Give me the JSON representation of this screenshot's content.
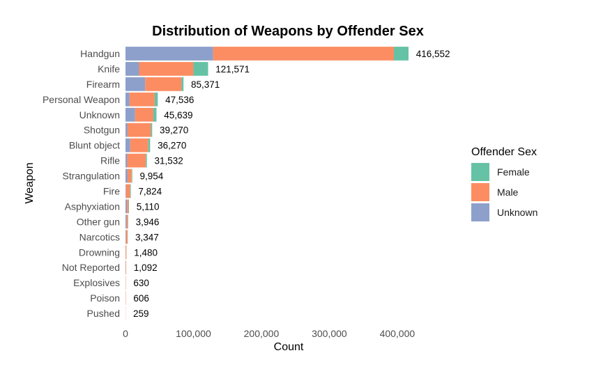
{
  "chart_data": {
    "type": "bar",
    "orientation": "horizontal",
    "stacked": true,
    "title": "Distribution of Weapons by Offender Sex",
    "xlabel": "Count",
    "ylabel": "Weapon",
    "xlim": [
      0,
      416552
    ],
    "xticks": [
      0,
      100000,
      200000,
      300000,
      400000
    ],
    "xtick_labels": [
      "0",
      "100,000",
      "200,000",
      "300,000",
      "400,000"
    ],
    "grid": false,
    "legend": {
      "title": "Offender Sex",
      "position": "right"
    },
    "categories": [
      "Handgun",
      "Knife",
      "Firearm",
      "Personal Weapon",
      "Unknown",
      "Shotgun",
      "Blunt object",
      "Rifle",
      "Strangulation",
      "Fire",
      "Asphyxiation",
      "Other gun",
      "Narcotics",
      "Drowning",
      "Not Reported",
      "Explosives",
      "Poison",
      "Pushed"
    ],
    "series": [
      {
        "name": "Unknown",
        "color": "#8DA0CB",
        "values": [
          129000,
          20000,
          29000,
          6000,
          14000,
          3000,
          7000,
          2500,
          3000,
          800,
          2200,
          1700,
          600,
          100,
          300,
          200,
          150,
          50
        ]
      },
      {
        "name": "Male",
        "color": "#FC8D62",
        "values": [
          266000,
          80000,
          53500,
          37000,
          27000,
          34500,
          26500,
          27500,
          6000,
          6000,
          2400,
          2000,
          2300,
          1200,
          700,
          380,
          390,
          190
        ]
      },
      {
        "name": "Female",
        "color": "#66C2A5",
        "values": [
          21552,
          21571,
          2871,
          4536,
          4639,
          1770,
          2770,
          1532,
          954,
          1024,
          510,
          246,
          447,
          180,
          92,
          50,
          66,
          19
        ]
      }
    ],
    "totals": [
      416552,
      121571,
      85371,
      47536,
      45639,
      39270,
      36270,
      31532,
      9954,
      7824,
      5110,
      3946,
      3347,
      1480,
      1092,
      630,
      606,
      259
    ],
    "total_labels": [
      "416,552",
      "121,571",
      "85,371",
      "47,536",
      "45,639",
      "39,270",
      "36,270",
      "31,532",
      "9,954",
      "7,824",
      "5,110",
      "3,946",
      "3,347",
      "1,480",
      "1,092",
      "630",
      "606",
      "259"
    ],
    "legend_order": [
      "Female",
      "Male",
      "Unknown"
    ]
  }
}
